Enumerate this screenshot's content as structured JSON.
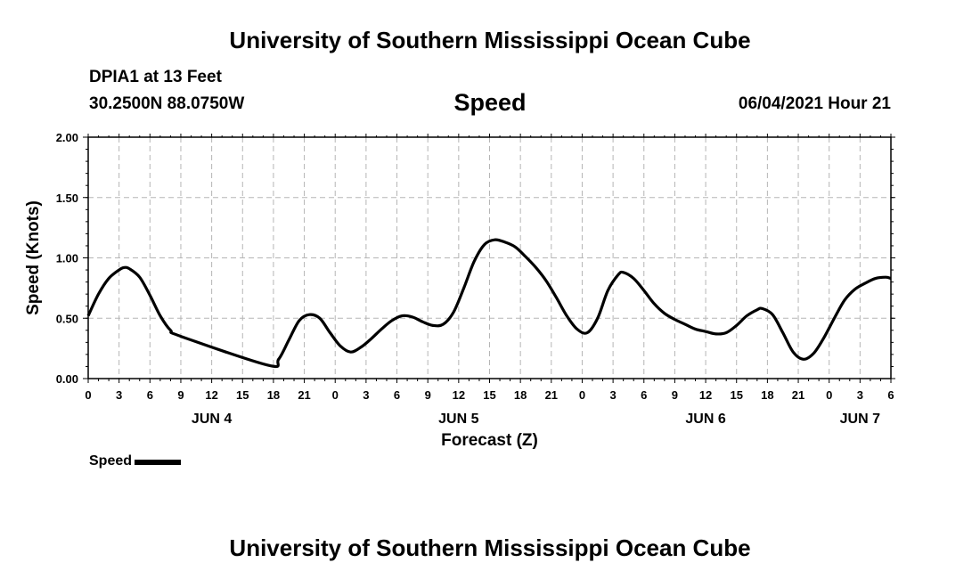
{
  "header": {
    "title": "University of Southern Mississippi Ocean Cube",
    "station": "DPIA1 at 13 Feet",
    "coords": "30.2500N  88.0750W",
    "datetime": "06/04/2021 Hour 21"
  },
  "footer": {
    "title": "University of Southern Mississippi Ocean Cube"
  },
  "chart_data": {
    "type": "line",
    "title": "Speed",
    "xlabel": "Forecast (Z)",
    "ylabel": "Speed (Knots)",
    "ylim": [
      0,
      2
    ],
    "xlim_hours": [
      0,
      78
    ],
    "y_ticks": [
      "0.00",
      "0.50",
      "1.00",
      "1.50",
      "2.00"
    ],
    "x_ticks": [
      "0",
      "3",
      "6",
      "9",
      "12",
      "15",
      "18",
      "21",
      "0",
      "3",
      "6",
      "9",
      "12",
      "15",
      "18",
      "21",
      "0",
      "3",
      "6",
      "9",
      "12",
      "15",
      "18",
      "21",
      "0",
      "3",
      "6"
    ],
    "day_labels": [
      {
        "label": "JUN 4",
        "hour": 12
      },
      {
        "label": "JUN 5",
        "hour": 36
      },
      {
        "label": "JUN 6",
        "hour": 60
      },
      {
        "label": "JUN 7",
        "hour": 75
      }
    ],
    "grid": true,
    "legend": {
      "position": "bottom-left",
      "entries": [
        "Speed"
      ]
    },
    "series": [
      {
        "name": "Speed",
        "color": "#000000",
        "points": [
          [
            0,
            0.52
          ],
          [
            1,
            0.7
          ],
          [
            2,
            0.83
          ],
          [
            3,
            0.9
          ],
          [
            3.5,
            0.92
          ],
          [
            4,
            0.91
          ],
          [
            5,
            0.84
          ],
          [
            6,
            0.69
          ],
          [
            7,
            0.52
          ],
          [
            8,
            0.4
          ],
          [
            9,
            0.35
          ],
          [
            17.5,
            0.11
          ],
          [
            18.5,
            0.16
          ],
          [
            19.5,
            0.32
          ],
          [
            20.5,
            0.48
          ],
          [
            21.5,
            0.53
          ],
          [
            22.5,
            0.5
          ],
          [
            23.5,
            0.38
          ],
          [
            24.5,
            0.27
          ],
          [
            25.5,
            0.22
          ],
          [
            26.5,
            0.26
          ],
          [
            27.5,
            0.33
          ],
          [
            28.5,
            0.41
          ],
          [
            29.5,
            0.48
          ],
          [
            30.5,
            0.52
          ],
          [
            31.5,
            0.51
          ],
          [
            32.5,
            0.47
          ],
          [
            33.5,
            0.44
          ],
          [
            34.5,
            0.45
          ],
          [
            35.5,
            0.55
          ],
          [
            36.5,
            0.75
          ],
          [
            37.5,
            0.97
          ],
          [
            38.5,
            1.11
          ],
          [
            39.5,
            1.15
          ],
          [
            40.5,
            1.13
          ],
          [
            41.5,
            1.09
          ],
          [
            42.5,
            1.01
          ],
          [
            43.5,
            0.92
          ],
          [
            44.5,
            0.81
          ],
          [
            45.5,
            0.67
          ],
          [
            46.5,
            0.52
          ],
          [
            47.5,
            0.41
          ],
          [
            48.5,
            0.38
          ],
          [
            49.5,
            0.5
          ],
          [
            50.5,
            0.73
          ],
          [
            51.5,
            0.86
          ],
          [
            52,
            0.88
          ],
          [
            53,
            0.83
          ],
          [
            54,
            0.73
          ],
          [
            55,
            0.62
          ],
          [
            56,
            0.54
          ],
          [
            57,
            0.49
          ],
          [
            58,
            0.45
          ],
          [
            59,
            0.41
          ],
          [
            60,
            0.39
          ],
          [
            61,
            0.37
          ],
          [
            62,
            0.38
          ],
          [
            63,
            0.44
          ],
          [
            64,
            0.52
          ],
          [
            65,
            0.57
          ],
          [
            65.5,
            0.58
          ],
          [
            66.5,
            0.53
          ],
          [
            67.5,
            0.38
          ],
          [
            68.5,
            0.22
          ],
          [
            69.5,
            0.16
          ],
          [
            70.5,
            0.21
          ],
          [
            71.5,
            0.34
          ],
          [
            72.5,
            0.5
          ],
          [
            73.5,
            0.65
          ],
          [
            74.5,
            0.74
          ],
          [
            75.5,
            0.79
          ],
          [
            76.5,
            0.83
          ],
          [
            77.5,
            0.84
          ],
          [
            78,
            0.83
          ]
        ]
      }
    ]
  }
}
